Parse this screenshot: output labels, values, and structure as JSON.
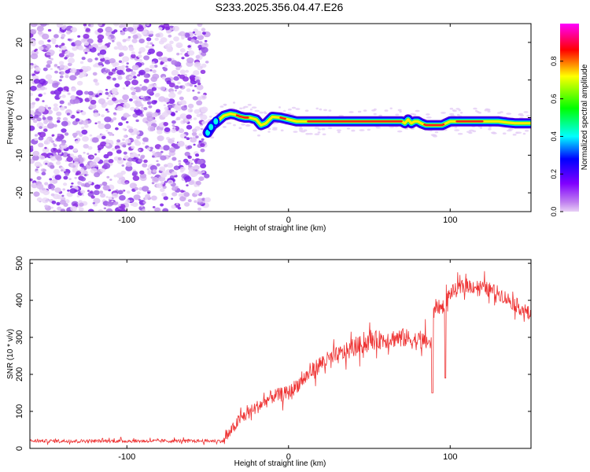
{
  "title": "S233.2025.356.04.47.E26",
  "chart_data": [
    {
      "type": "heatmap",
      "xlabel": "Height of straight line (km)",
      "ylabel": "Frequency (Hz)",
      "xlim": [
        -160,
        150
      ],
      "ylim": [
        -25,
        25
      ],
      "x_ticks": [
        -100,
        0,
        100
      ],
      "x_tick_labels": [
        "-100",
        "0",
        "100"
      ],
      "y_ticks": [
        -20,
        -10,
        0,
        10,
        20
      ],
      "y_tick_labels": [
        "-20",
        "-10",
        "0",
        "10",
        "20"
      ],
      "noise_region_x": [
        -160,
        -50
      ],
      "ridge": {
        "x": [
          -50,
          -47,
          -44,
          -40,
          -36,
          -33,
          -30,
          -27,
          -24,
          -20,
          -17,
          -14,
          -10,
          -5,
          0,
          5,
          10,
          20,
          30,
          40,
          50,
          60,
          70,
          72,
          74,
          76,
          78,
          80,
          82,
          85,
          90,
          95,
          100,
          105,
          110,
          115,
          120,
          125,
          130,
          135,
          140,
          145,
          150
        ],
        "y": [
          -4,
          -2,
          -1,
          0.5,
          1,
          0.8,
          0.3,
          0,
          0,
          -0.5,
          -2,
          -1.5,
          0.2,
          0,
          -0.5,
          -1,
          -1,
          -1,
          -1,
          -1,
          -1,
          -1,
          -1,
          -1.5,
          -0.5,
          -1.5,
          -1,
          -1,
          -1.5,
          -2,
          -2,
          -2,
          -1,
          -1,
          -1,
          -1,
          -1,
          -1,
          -1,
          -1.3,
          -1.5,
          -1.5,
          -1.5
        ]
      },
      "colorbar": {
        "label": "Normalized spectral amplitude",
        "ticks": [
          0.0,
          0.2,
          0.4,
          0.6,
          0.8
        ],
        "tick_labels": [
          "0.0",
          "0.2",
          "0.4",
          "0.6",
          "0.8"
        ],
        "range": [
          0,
          1
        ],
        "colormap": [
          "#e6ccf2",
          "#8b00ff",
          "#0000ff",
          "#00ffff",
          "#00ff00",
          "#ffff00",
          "#ff0000",
          "#ff00ff"
        ]
      }
    },
    {
      "type": "line",
      "xlabel": "Height of straight line (km)",
      "ylabel": "SNR (10 * v/v)",
      "xlim": [
        -160,
        150
      ],
      "ylim": [
        0,
        510
      ],
      "x_ticks": [
        -100,
        0,
        100
      ],
      "x_tick_labels": [
        "-100",
        "0",
        "100"
      ],
      "y_ticks": [
        0,
        100,
        200,
        300,
        400,
        500
      ],
      "y_tick_labels": [
        "0",
        "100",
        "200",
        "300",
        "400",
        "500"
      ],
      "color": "#ee3333",
      "trend": {
        "x": [
          -160,
          -40,
          -30,
          -20,
          -10,
          0,
          10,
          20,
          30,
          40,
          50,
          60,
          70,
          80,
          86,
          88,
          90,
          95,
          100,
          110,
          120,
          130,
          140,
          150
        ],
        "y": [
          20,
          20,
          80,
          110,
          140,
          150,
          190,
          230,
          250,
          270,
          290,
          295,
          300,
          290,
          290,
          280,
          385,
          380,
          420,
          440,
          435,
          420,
          390,
          360
        ]
      },
      "dips": [
        {
          "x": 89,
          "y": 150
        },
        {
          "x": 97,
          "y": 190
        }
      ]
    }
  ]
}
